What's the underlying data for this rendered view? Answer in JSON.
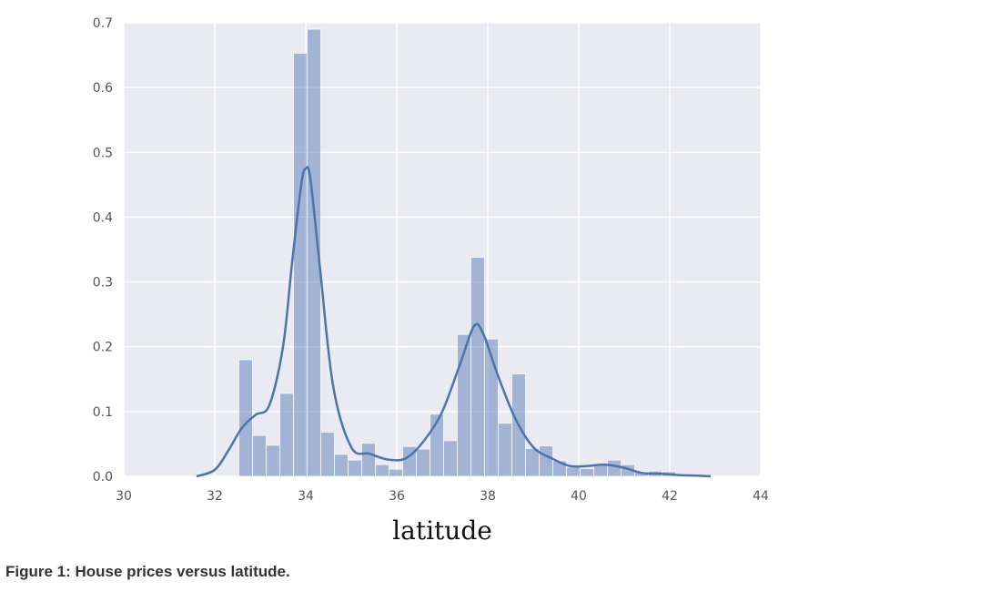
{
  "caption": "Figure 1: House prices versus latitude.",
  "chart_data": {
    "type": "bar",
    "title": "",
    "xlabel": "latitude",
    "ylabel": "",
    "xlim": [
      30,
      44
    ],
    "ylim": [
      0,
      0.7
    ],
    "x_ticks": [
      "30",
      "32",
      "34",
      "36",
      "38",
      "40",
      "42",
      "44"
    ],
    "y_ticks": [
      "0.0",
      "0.1",
      "0.2",
      "0.3",
      "0.4",
      "0.5",
      "0.6",
      "0.7"
    ],
    "grid": true,
    "legend": "none",
    "colors": {
      "background": "#eaeaf2",
      "bars": "#4c72b0",
      "kde": "#4c72b0",
      "grid": "#ffffff"
    },
    "histogram": {
      "bin_edges": [
        32.53,
        32.83,
        33.13,
        33.43,
        33.73,
        34.03,
        34.33,
        34.63,
        34.93,
        35.23,
        35.53,
        35.83,
        36.13,
        36.43,
        36.73,
        37.03,
        37.33,
        37.63,
        37.93,
        38.23,
        38.53,
        38.83,
        39.13,
        39.43,
        39.73,
        40.03,
        40.33,
        40.63,
        40.93,
        41.23,
        41.53,
        41.83,
        42.13
      ],
      "values": [
        0.18,
        0.063,
        0.048,
        0.128,
        0.653,
        0.69,
        0.068,
        0.034,
        0.025,
        0.051,
        0.018,
        0.011,
        0.046,
        0.042,
        0.096,
        0.055,
        0.219,
        0.338,
        0.212,
        0.082,
        0.158,
        0.043,
        0.047,
        0.024,
        0.014,
        0.012,
        0.017,
        0.025,
        0.018,
        0.007,
        0.008,
        0.007
      ]
    },
    "kde": {
      "x": [
        31.6,
        32.0,
        32.3,
        32.6,
        32.9,
        33.2,
        33.5,
        33.7,
        33.9,
        34.0,
        34.1,
        34.3,
        34.6,
        35.0,
        35.4,
        35.8,
        36.2,
        36.6,
        37.0,
        37.4,
        37.7,
        37.9,
        38.2,
        38.6,
        39.0,
        39.4,
        39.8,
        40.2,
        40.6,
        41.0,
        41.4,
        41.8,
        42.2,
        42.6,
        42.9
      ],
      "y": [
        0.0,
        0.01,
        0.04,
        0.075,
        0.095,
        0.11,
        0.2,
        0.33,
        0.45,
        0.475,
        0.46,
        0.33,
        0.14,
        0.045,
        0.035,
        0.026,
        0.028,
        0.055,
        0.1,
        0.175,
        0.232,
        0.22,
        0.16,
        0.09,
        0.045,
        0.028,
        0.016,
        0.016,
        0.018,
        0.013,
        0.005,
        0.004,
        0.002,
        0.001,
        0.0
      ]
    }
  }
}
